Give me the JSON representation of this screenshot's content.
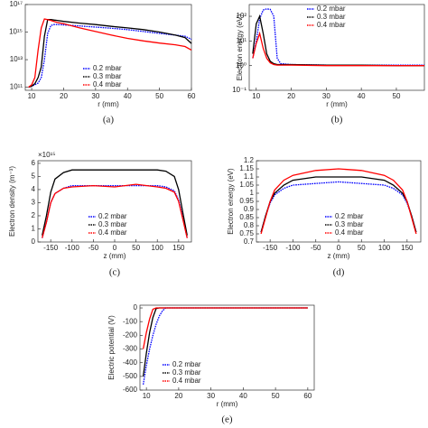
{
  "chart_data": [
    {
      "type": "line",
      "caption": "(a)",
      "x_label": "r (mm)",
      "yscale": "log",
      "x": [
        9,
        10,
        11,
        12,
        13,
        14,
        15,
        16,
        17,
        18,
        20,
        25,
        30,
        35,
        40,
        45,
        50,
        55,
        58,
        60
      ],
      "series": [
        {
          "name": "0.2 mbar",
          "color": "#0000ff",
          "values": [
            100000000000.0,
            120000000000.0,
            150000000000.0,
            200000000000.0,
            500000000000.0,
            10000000000000.0,
            800000000000000.0,
            3000000000000000.0,
            3500000000000000.0,
            3500000000000000.0,
            3300000000000000.0,
            2800000000000000.0,
            2300000000000000.0,
            1900000000000000.0,
            1500000000000000.0,
            1100000000000000.0,
            800000000000000.0,
            600000000000000.0,
            500000000000000.0,
            300000000000000.0
          ]
        },
        {
          "name": "0.3 mbar",
          "color": "#000000",
          "values": [
            100000000000.0,
            120000000000.0,
            180000000000.0,
            500000000000.0,
            3000000000000.0,
            500000000000000.0,
            8000000000000000.0,
            8000000000000000.0,
            7500000000000000.0,
            7000000000000000.0,
            6000000000000000.0,
            4500000000000000.0,
            3500000000000000.0,
            2600000000000000.0,
            2000000000000000.0,
            1500000000000000.0,
            1000000000000000.0,
            600000000000000.0,
            400000000000000.0,
            150000000000000.0
          ]
        },
        {
          "name": "0.4 mbar",
          "color": "#ff0000",
          "values": [
            100000000000.0,
            150000000000.0,
            500000000000.0,
            50000000000000.0,
            2000000000000000.0,
            9000000000000000.0,
            8000000000000000.0,
            7000000000000000.0,
            6000000000000000.0,
            5000000000000000.0,
            4000000000000000.0,
            2000000000000000.0,
            1100000000000000.0,
            600000000000000.0,
            350000000000000.0,
            230000000000000.0,
            160000000000000.0,
            120000000000000.0,
            90000000000000.0,
            50000000000000.0
          ]
        }
      ],
      "xlim": [
        8,
        60
      ],
      "xticks": [
        10,
        20,
        30,
        40,
        50,
        60
      ],
      "ylim": [
        60000000000.0,
        1e+17
      ],
      "yticks": [
        {
          "value": 100000000000.0,
          "label": "10¹¹"
        },
        {
          "value": 10000000000000.0,
          "label": "10¹³"
        },
        {
          "value": 1000000000000000.0,
          "label": "10¹⁵"
        },
        {
          "value": 1e+17,
          "label": "10¹⁷"
        }
      ]
    },
    {
      "type": "line",
      "caption": "(b)",
      "x_label": "r (mm)",
      "y_label": "Electron energy (eV)",
      "yscale": "log",
      "x": [
        9,
        10,
        11,
        12,
        13,
        14,
        15,
        16,
        17,
        20,
        30,
        40,
        50,
        58
      ],
      "series": [
        {
          "name": "0.2 mbar",
          "color": "#0000ff",
          "values": [
            2,
            10,
            80,
            180,
            200,
            190,
            100,
            2,
            1.2,
            1.1,
            1.05,
            1.05,
            1.05,
            1.05
          ]
        },
        {
          "name": "0.3 mbar",
          "color": "#000000",
          "values": [
            3,
            50,
            100,
            20,
            3,
            1.5,
            1.2,
            1.1,
            1.1,
            1.1,
            1.05,
            1.05,
            1.0,
            1.0
          ]
        },
        {
          "name": "0.4 mbar",
          "color": "#ff0000",
          "values": [
            2,
            8,
            20,
            5,
            2,
            1.3,
            1.1,
            1.05,
            1.05,
            1.05,
            1.0,
            1.0,
            1.0,
            1.0
          ]
        }
      ],
      "xlim": [
        8,
        58
      ],
      "xticks": [
        10,
        20,
        30,
        40,
        50
      ],
      "ylim": [
        0.1,
        300
      ],
      "yticks": [
        {
          "value": 0.1,
          "label": "10⁻¹"
        },
        {
          "value": 1,
          "label": "10⁰"
        },
        {
          "value": 10,
          "label": "10¹"
        },
        {
          "value": 100,
          "label": "10²"
        }
      ]
    },
    {
      "type": "line",
      "caption": "(c)",
      "x_label": "z (mm)",
      "y_label": "Electron density (m⁻³)",
      "y_multiplier": "×10¹⁵",
      "x": [
        -170,
        -160,
        -150,
        -140,
        -120,
        -100,
        -50,
        0,
        50,
        100,
        120,
        140,
        150,
        160,
        170
      ],
      "series": [
        {
          "name": "0.2 mbar",
          "color": "#0000ff",
          "values": [
            0.3,
            1.5,
            3,
            3.7,
            4.1,
            4.3,
            4.3,
            4.3,
            4.3,
            4.3,
            4.2,
            3.9,
            3.2,
            1.8,
            0.3
          ]
        },
        {
          "name": "0.3 mbar",
          "color": "#000000",
          "values": [
            0.5,
            2,
            3.8,
            4.8,
            5.3,
            5.5,
            5.5,
            5.5,
            5.5,
            5.5,
            5.4,
            5,
            4,
            2.2,
            0.5
          ]
        },
        {
          "name": "0.4 mbar",
          "color": "#ff0000",
          "values": [
            0.3,
            1.5,
            3,
            3.7,
            4.1,
            4.2,
            4.3,
            4.2,
            4.4,
            4.2,
            4.1,
            3.8,
            3.1,
            1.7,
            0.3
          ]
        }
      ],
      "xlim": [
        -180,
        180
      ],
      "xticks": [
        -150,
        -100,
        -50,
        0,
        50,
        100,
        150
      ],
      "ylim": [
        0,
        6.2
      ],
      "yticks": [
        0,
        1,
        2,
        3,
        4,
        5,
        6
      ]
    },
    {
      "type": "line",
      "caption": "(d)",
      "x_label": "z (mm)",
      "y_label": "Electron energy (eV)",
      "x": [
        -170,
        -160,
        -150,
        -140,
        -120,
        -100,
        -50,
        0,
        50,
        100,
        120,
        140,
        150,
        160,
        170
      ],
      "series": [
        {
          "name": "0.2 mbar",
          "color": "#0000ff",
          "values": [
            0.76,
            0.86,
            0.94,
            0.99,
            1.03,
            1.05,
            1.06,
            1.07,
            1.06,
            1.05,
            1.03,
            0.99,
            0.94,
            0.86,
            0.76
          ]
        },
        {
          "name": "0.3 mbar",
          "color": "#000000",
          "values": [
            0.76,
            0.86,
            0.95,
            1.0,
            1.05,
            1.08,
            1.1,
            1.1,
            1.1,
            1.08,
            1.05,
            1.0,
            0.95,
            0.86,
            0.76
          ]
        },
        {
          "name": "0.4 mbar",
          "color": "#ff0000",
          "values": [
            0.75,
            0.85,
            0.95,
            1.02,
            1.08,
            1.11,
            1.14,
            1.15,
            1.14,
            1.11,
            1.08,
            1.02,
            0.95,
            0.85,
            0.75
          ]
        }
      ],
      "xlim": [
        -180,
        180
      ],
      "xticks": [
        -150,
        -100,
        -50,
        0,
        50,
        100,
        150
      ],
      "ylim": [
        0.7,
        1.2
      ],
      "yticks": [
        0.7,
        0.75,
        0.8,
        0.85,
        0.9,
        0.95,
        1,
        1.05,
        1.1,
        1.15,
        1.2
      ]
    },
    {
      "type": "line",
      "caption": "(e)",
      "x_label": "r (mm)",
      "y_label": "Electric potential (V)",
      "x": [
        9,
        10,
        11,
        12,
        13,
        14,
        15,
        16,
        20,
        30,
        40,
        50,
        60
      ],
      "series": [
        {
          "name": "0.2 mbar",
          "color": "#0000ff",
          "values": [
            -560,
            -420,
            -300,
            -200,
            -120,
            -60,
            -20,
            0,
            0,
            0,
            0,
            0,
            0
          ]
        },
        {
          "name": "0.3 mbar",
          "color": "#000000",
          "values": [
            -500,
            -330,
            -180,
            -70,
            -5,
            0,
            0,
            0,
            0,
            0,
            0,
            0,
            0
          ]
        },
        {
          "name": "0.4 mbar",
          "color": "#ff0000",
          "values": [
            -300,
            -180,
            -80,
            -10,
            0,
            0,
            0,
            0,
            0,
            0,
            0,
            0,
            0
          ]
        }
      ],
      "xlim": [
        8,
        62
      ],
      "xticks": [
        10,
        20,
        30,
        40,
        50,
        60
      ],
      "ylim": [
        -600,
        20
      ],
      "yticks": [
        -600,
        -500,
        -400,
        -300,
        -200,
        -100,
        0
      ]
    }
  ]
}
